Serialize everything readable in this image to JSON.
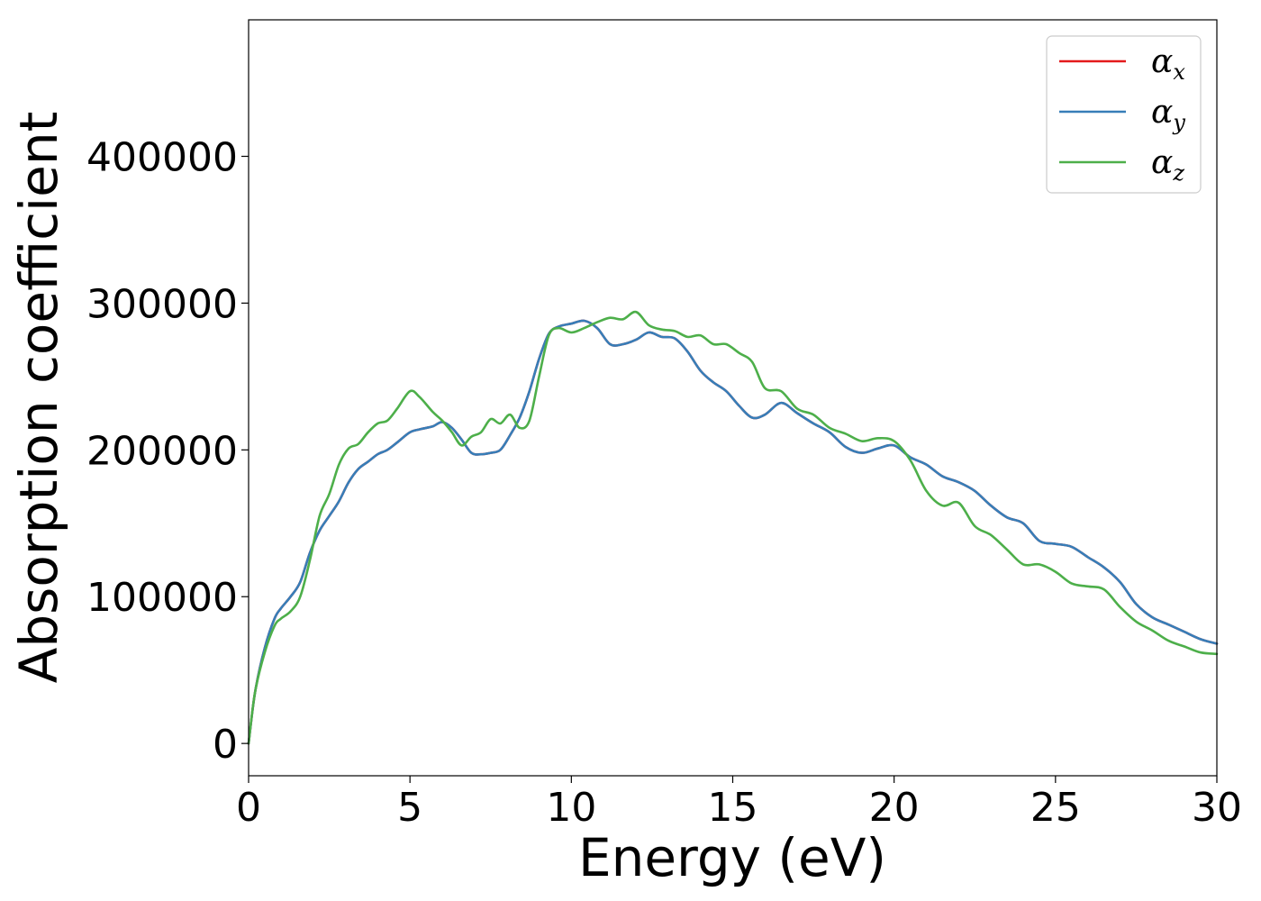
{
  "chart_data": {
    "type": "line",
    "title": "",
    "xlabel": "Energy (eV)",
    "ylabel": "Absorption coefficient",
    "xlim": [
      0,
      30
    ],
    "ylim": [
      -22000,
      493000
    ],
    "xticks": [
      0,
      5,
      10,
      15,
      20,
      25,
      30
    ],
    "xtick_labels": [
      "0",
      "5",
      "10",
      "15",
      "20",
      "25",
      "30"
    ],
    "yticks": [
      0,
      100000,
      200000,
      300000,
      400000
    ],
    "ytick_labels": [
      "0",
      "100000",
      "200000",
      "300000",
      "400000"
    ],
    "grid": false,
    "legend_position": "top-right",
    "series": [
      {
        "name": "α_x",
        "legend_symbol": "α",
        "legend_sub": "x",
        "color": "#e41a1c",
        "x": [
          0,
          0.2,
          0.5,
          0.8,
          1.0,
          1.3,
          1.6,
          1.9,
          2.2,
          2.5,
          2.8,
          3.1,
          3.4,
          3.7,
          4.0,
          4.3,
          4.6,
          5.0,
          5.3,
          5.7,
          6.0,
          6.3,
          6.6,
          6.9,
          7.2,
          7.5,
          7.8,
          8.1,
          8.4,
          8.7,
          9.0,
          9.3,
          9.6,
          10.0,
          10.4,
          10.8,
          11.2,
          11.6,
          12.0,
          12.4,
          12.8,
          13.2,
          13.6,
          14.0,
          14.4,
          14.8,
          15.2,
          15.6,
          16.0,
          16.5,
          17.0,
          17.5,
          18.0,
          18.5,
          19.0,
          19.5,
          20.0,
          20.5,
          21.0,
          21.5,
          22.0,
          22.5,
          23.0,
          23.5,
          24.0,
          24.5,
          25.0,
          25.5,
          26.0,
          26.5,
          27.0,
          27.5,
          28.0,
          28.5,
          29.0,
          29.5,
          30.0
        ],
        "y": [
          0,
          35000,
          65000,
          85000,
          92000,
          100000,
          110000,
          130000,
          145000,
          155000,
          165000,
          178000,
          187000,
          192000,
          197000,
          200000,
          205000,
          212000,
          214000,
          216000,
          219000,
          215000,
          207000,
          198000,
          197000,
          198000,
          200000,
          210000,
          222000,
          240000,
          262000,
          279000,
          284000,
          286000,
          288000,
          283000,
          272000,
          272000,
          275000,
          280000,
          277000,
          276000,
          267000,
          254000,
          246000,
          240000,
          230000,
          222000,
          224000,
          232000,
          225000,
          218000,
          212000,
          202000,
          198000,
          201000,
          203000,
          195000,
          190000,
          182000,
          178000,
          172000,
          162000,
          154000,
          150000,
          138000,
          136000,
          134000,
          127000,
          120000,
          110000,
          95000,
          86000,
          81000,
          76000,
          71000,
          68000
        ]
      },
      {
        "name": "α_y",
        "legend_symbol": "α",
        "legend_sub": "y",
        "color": "#377eb8",
        "x": [
          0,
          0.2,
          0.5,
          0.8,
          1.0,
          1.3,
          1.6,
          1.9,
          2.2,
          2.5,
          2.8,
          3.1,
          3.4,
          3.7,
          4.0,
          4.3,
          4.6,
          5.0,
          5.3,
          5.7,
          6.0,
          6.3,
          6.6,
          6.9,
          7.2,
          7.5,
          7.8,
          8.1,
          8.4,
          8.7,
          9.0,
          9.3,
          9.6,
          10.0,
          10.4,
          10.8,
          11.2,
          11.6,
          12.0,
          12.4,
          12.8,
          13.2,
          13.6,
          14.0,
          14.4,
          14.8,
          15.2,
          15.6,
          16.0,
          16.5,
          17.0,
          17.5,
          18.0,
          18.5,
          19.0,
          19.5,
          20.0,
          20.5,
          21.0,
          21.5,
          22.0,
          22.5,
          23.0,
          23.5,
          24.0,
          24.5,
          25.0,
          25.5,
          26.0,
          26.5,
          27.0,
          27.5,
          28.0,
          28.5,
          29.0,
          29.5,
          30.0
        ],
        "y": [
          0,
          35000,
          65000,
          85000,
          92000,
          100000,
          110000,
          130000,
          145000,
          155000,
          165000,
          178000,
          187000,
          192000,
          197000,
          200000,
          205000,
          212000,
          214000,
          216000,
          219000,
          215000,
          207000,
          198000,
          197000,
          198000,
          200000,
          210000,
          222000,
          240000,
          262000,
          279000,
          284000,
          286000,
          288000,
          283000,
          272000,
          272000,
          275000,
          280000,
          277000,
          276000,
          267000,
          254000,
          246000,
          240000,
          230000,
          222000,
          224000,
          232000,
          225000,
          218000,
          212000,
          202000,
          198000,
          201000,
          203000,
          195000,
          190000,
          182000,
          178000,
          172000,
          162000,
          154000,
          150000,
          138000,
          136000,
          134000,
          127000,
          120000,
          110000,
          95000,
          86000,
          81000,
          76000,
          71000,
          68000
        ]
      },
      {
        "name": "α_z",
        "legend_symbol": "α",
        "legend_sub": "z",
        "color": "#4daf4a",
        "x": [
          0,
          0.2,
          0.5,
          0.8,
          1.0,
          1.3,
          1.6,
          1.9,
          2.2,
          2.5,
          2.8,
          3.1,
          3.4,
          3.7,
          4.0,
          4.3,
          4.6,
          5.0,
          5.3,
          5.7,
          6.0,
          6.3,
          6.6,
          6.9,
          7.2,
          7.5,
          7.8,
          8.1,
          8.4,
          8.7,
          9.0,
          9.3,
          9.6,
          10.0,
          10.4,
          10.8,
          11.2,
          11.6,
          12.0,
          12.4,
          12.8,
          13.2,
          13.6,
          14.0,
          14.4,
          14.8,
          15.2,
          15.6,
          16.0,
          16.5,
          17.0,
          17.5,
          18.0,
          18.5,
          19.0,
          19.5,
          20.0,
          20.5,
          21.0,
          21.5,
          22.0,
          22.5,
          23.0,
          23.5,
          24.0,
          24.5,
          25.0,
          25.5,
          26.0,
          26.5,
          27.0,
          27.5,
          28.0,
          28.5,
          29.0,
          29.5,
          30.0
        ],
        "y": [
          0,
          35000,
          62000,
          80000,
          85000,
          90000,
          100000,
          125000,
          155000,
          170000,
          190000,
          201000,
          204000,
          212000,
          218000,
          220000,
          228000,
          240000,
          236000,
          226000,
          220000,
          212000,
          203000,
          209000,
          212000,
          221000,
          218000,
          224000,
          215000,
          220000,
          250000,
          278000,
          283000,
          280000,
          283000,
          287000,
          290000,
          289000,
          294000,
          285000,
          282000,
          281000,
          277000,
          278000,
          272000,
          272000,
          266000,
          260000,
          242000,
          240000,
          228000,
          224000,
          215000,
          211000,
          206000,
          208000,
          206000,
          193000,
          172000,
          162000,
          164000,
          148000,
          142000,
          132000,
          122000,
          122000,
          117000,
          109000,
          107000,
          105000,
          93000,
          83000,
          77000,
          70000,
          66000,
          62000,
          61000
        ]
      }
    ]
  }
}
